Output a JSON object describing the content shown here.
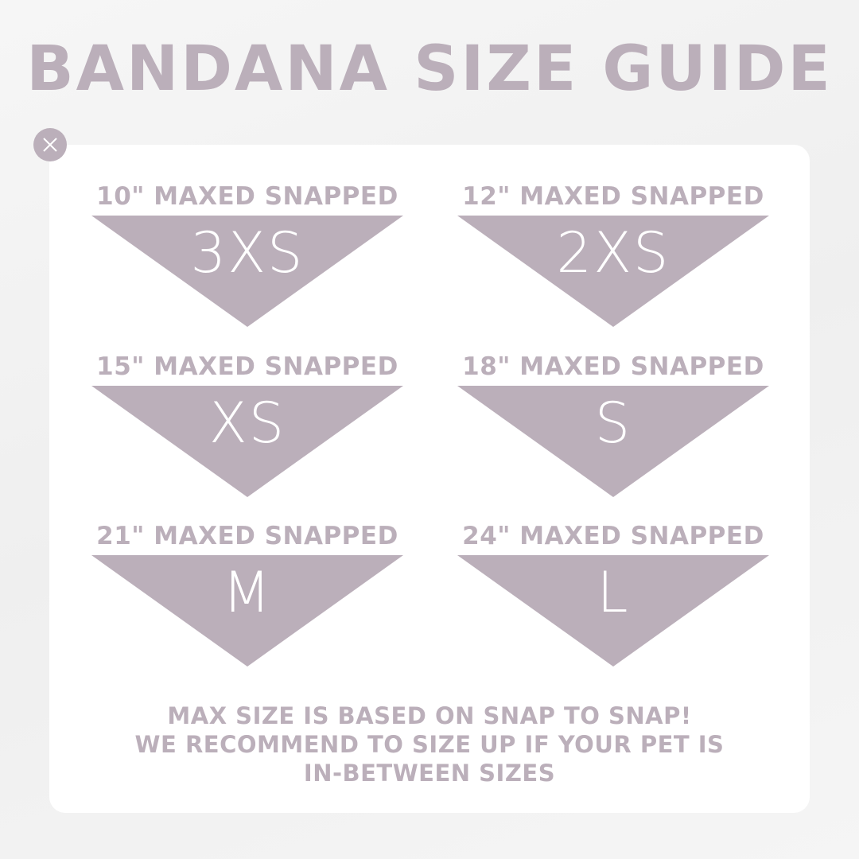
{
  "title": "BANDANA SIZE GUIDE",
  "close_icon": "close-icon",
  "accent_color": "#bbafba",
  "sizes": [
    {
      "label": "10\" MAXED SNAPPED",
      "size": "3XS"
    },
    {
      "label": "12\" MAXED SNAPPED",
      "size": "2XS"
    },
    {
      "label": "15\" MAXED SNAPPED",
      "size": "XS"
    },
    {
      "label": "18\" MAXED SNAPPED",
      "size": "S"
    },
    {
      "label": "21\" MAXED SNAPPED",
      "size": "M"
    },
    {
      "label": "24\" MAXED SNAPPED",
      "size": "L"
    }
  ],
  "note": {
    "line1": "MAX SIZE IS BASED ON SNAP TO SNAP!",
    "line2": "WE RECOMMEND TO SIZE UP IF YOUR PET IS",
    "line3": "IN-BETWEEN SIZES"
  }
}
